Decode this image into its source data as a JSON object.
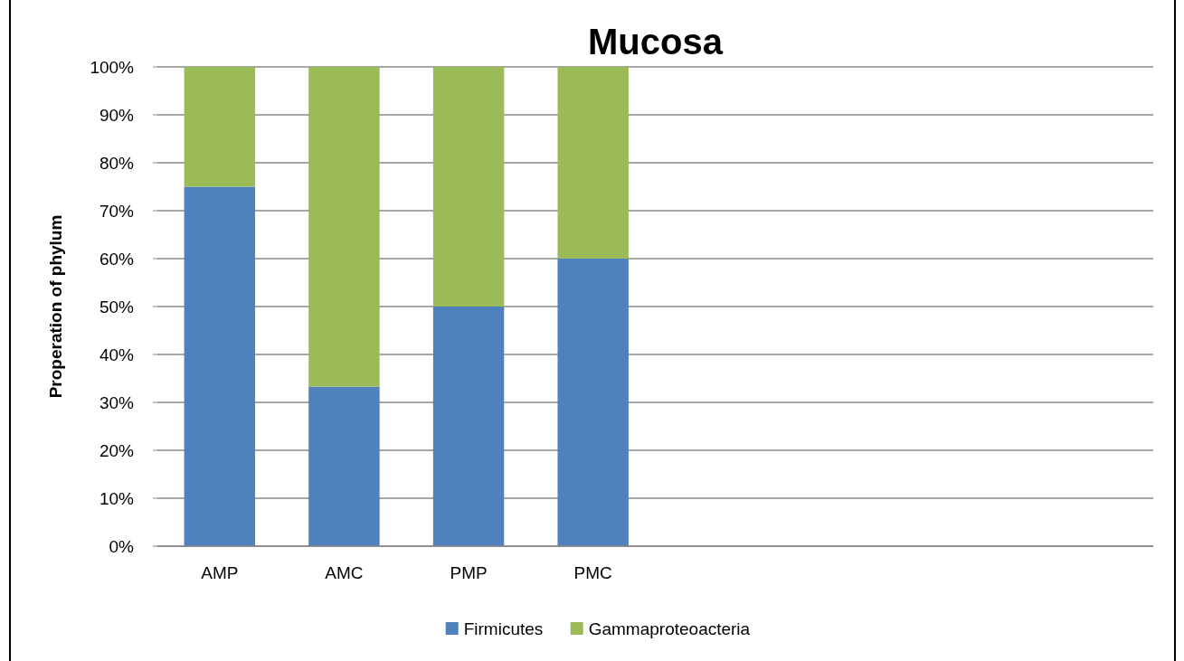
{
  "chart_data": {
    "type": "bar",
    "title": "Mucosa",
    "ylabel": "Properation of phylum",
    "stacked": true,
    "categories": [
      "AMP",
      "AMC",
      "PMP",
      "PMC",
      null,
      null,
      null,
      null
    ],
    "series": [
      {
        "name": "Firmicutes",
        "color": "#4f81bd",
        "values": [
          75,
          33.3,
          50,
          60,
          null,
          null,
          null,
          null
        ]
      },
      {
        "name": "Gammaproteoacteria",
        "color": "#9bbb59",
        "values": [
          25,
          66.7,
          50,
          40,
          null,
          null,
          null,
          null
        ]
      }
    ],
    "ylim": [
      0,
      100
    ],
    "yticks": [
      {
        "value": 0,
        "label": "0%"
      },
      {
        "value": 10,
        "label": "10%"
      },
      {
        "value": 20,
        "label": "20%"
      },
      {
        "value": 30,
        "label": "30%"
      },
      {
        "value": 40,
        "label": "40%"
      },
      {
        "value": 50,
        "label": "50%"
      },
      {
        "value": 60,
        "label": "60%"
      },
      {
        "value": 70,
        "label": "70%"
      },
      {
        "value": 80,
        "label": "80%"
      },
      {
        "value": 90,
        "label": "90%"
      },
      {
        "value": 100,
        "label": "100%"
      }
    ],
    "grid": "y",
    "legend": "bottom"
  }
}
